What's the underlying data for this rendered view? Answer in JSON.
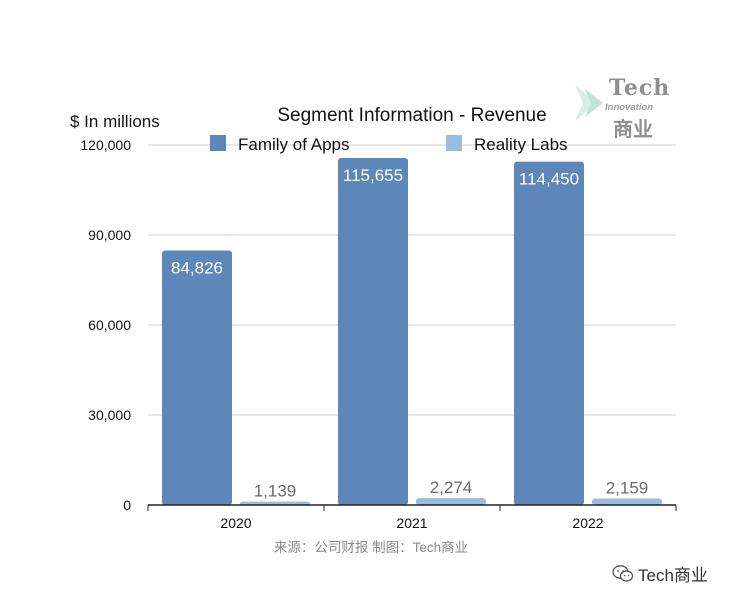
{
  "chart_data": {
    "type": "bar",
    "title": "Segment Information - Revenue",
    "unit_label": "$ In millions",
    "categories": [
      "2020",
      "2021",
      "2022"
    ],
    "series": [
      {
        "name": "Family of Apps",
        "values": [
          84826,
          115655,
          114450
        ],
        "labels": [
          "84,826",
          "115,655",
          "114,450"
        ],
        "color": "#5e87b9"
      },
      {
        "name": "Reality Labs",
        "values": [
          1139,
          2274,
          2159
        ],
        "labels": [
          "1,139",
          "2,274",
          "2,159"
        ],
        "color": "#98bde0"
      }
    ],
    "ylim": [
      0,
      120000
    ],
    "yticks": [
      0,
      30000,
      60000,
      90000,
      120000
    ],
    "ytick_labels": [
      "0",
      "30,000",
      "60,000",
      "90,000",
      "120,000"
    ],
    "grid": true,
    "legend_position": "top"
  },
  "watermark": {
    "line1": "Tech",
    "line2": "Innovation",
    "line3": "商业"
  },
  "source_note": "来源：公司财报 制图：Tech商业",
  "account": {
    "name": "Tech商业",
    "icon": "wechat-icon"
  }
}
